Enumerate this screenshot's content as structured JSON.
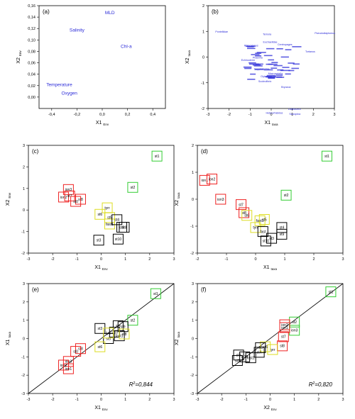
{
  "chart_data": [
    {
      "id": "a",
      "type": "scatter",
      "panel_label": "(a)",
      "xlabel": "X1",
      "xlabel_sub": "Env",
      "ylabel": "X2",
      "ylabel_sub": "Env",
      "xlim": [
        -0.5,
        0.5
      ],
      "ylim": [
        -0.02,
        0.16
      ],
      "xticks": [
        "-0,4",
        "-0,2",
        "0,0",
        "0,2",
        "0,4"
      ],
      "xtick_values": [
        -0.4,
        -0.2,
        0.0,
        0.2,
        0.4
      ],
      "yticks": [
        "0,00",
        "0,02",
        "0,04",
        "0,06",
        "0,08",
        "0,10",
        "0,12",
        "0,14",
        "0,16"
      ],
      "ytick_values": [
        0.0,
        0.02,
        0.04,
        0.06,
        0.08,
        0.1,
        0.12,
        0.14,
        0.16
      ],
      "text_color": "#2a2ad8",
      "points": [
        {
          "label": "MLD",
          "x": 0.06,
          "y": 0.145
        },
        {
          "label": "Salinity",
          "x": -0.2,
          "y": 0.115
        },
        {
          "label": "Chl-a",
          "x": 0.19,
          "y": 0.086
        },
        {
          "label": "Temperature",
          "x": -0.34,
          "y": 0.019
        },
        {
          "label": "Oxygen",
          "x": -0.26,
          "y": 0.004
        }
      ]
    },
    {
      "id": "b",
      "type": "scatter",
      "panel_label": "(b)",
      "xlabel": "X1",
      "xlabel_sub": "taxa",
      "ylabel": "X2",
      "ylabel_sub": "taxa",
      "xlim": [
        -3,
        3
      ],
      "ylim": [
        -2,
        2
      ],
      "xticks": [
        "-3",
        "-2",
        "-1",
        "0",
        "1",
        "2",
        "3"
      ],
      "xtick_values": [
        -3,
        -2,
        -1,
        0,
        1,
        2,
        3
      ],
      "yticks": [
        "-2",
        "-1",
        "0",
        "1",
        "2"
      ],
      "ytick_values": [
        -2,
        -1,
        0,
        1,
        2
      ],
      "text_color": "#2a2ad8",
      "points": [
        {
          "label": "Pontellidae",
          "x": -2.35,
          "y": 0.95
        },
        {
          "label": "Pseudodiaptomus",
          "x": 2.55,
          "y": 0.9
        },
        {
          "label": "Temora",
          "x": -0.2,
          "y": 0.85
        },
        {
          "label": "Euchaetidae",
          "x": -0.05,
          "y": 0.55
        },
        {
          "label": "Centropages",
          "x": 0.65,
          "y": 0.45
        },
        {
          "label": "Rhincalanus",
          "x": -0.95,
          "y": 0.42
        },
        {
          "label": "Tortanus",
          "x": 1.85,
          "y": 0.18
        },
        {
          "label": "Phaeniia",
          "x": -0.65,
          "y": -0.05
        },
        {
          "label": "Echinoderm",
          "x": -1.1,
          "y": -0.15
        },
        {
          "label": "Sapphirinidae",
          "x": -0.45,
          "y": -0.5
        },
        {
          "label": "Clytemnestra",
          "x": -0.15,
          "y": -0.78
        },
        {
          "label": "Scolecithrix",
          "x": -0.3,
          "y": -0.98
        },
        {
          "label": "Macrosetella",
          "x": 0.2,
          "y": -0.68
        },
        {
          "label": "Bryozoa",
          "x": 0.7,
          "y": -1.2
        },
        {
          "label": "Labidocera",
          "x": 1.1,
          "y": -2.05
        },
        {
          "label": "Heterorhabdus",
          "x": 0.15,
          "y": -2.2
        },
        {
          "label": "Scolopina",
          "x": 1.12,
          "y": -2.25
        }
      ],
      "cluster": {
        "x": [
          -1.2,
          1.2
        ],
        "y": [
          -0.9,
          0.5
        ]
      }
    },
    {
      "id": "c",
      "type": "scatter",
      "panel_label": "(c)",
      "xlabel": "X1",
      "xlabel_sub": "Env",
      "ylabel": "X2",
      "ylabel_sub": "Env",
      "xlim": [
        -3,
        3
      ],
      "ylim": [
        -2,
        3
      ],
      "xticks": [
        "-3",
        "-2",
        "-1",
        "0",
        "1",
        "2",
        "3"
      ],
      "xtick_values": [
        -3,
        -2,
        -1,
        0,
        1,
        2,
        3
      ],
      "yticks": [
        "-2",
        "-1",
        "0",
        "1",
        "2",
        "3"
      ],
      "ytick_values": [
        -2,
        -1,
        0,
        1,
        2,
        3
      ],
      "points": [
        {
          "label": "st1",
          "x": 2.3,
          "y": 2.5,
          "color": "#33cc33"
        },
        {
          "label": "st2",
          "x": 1.3,
          "y": 1.05,
          "color": "#33cc33"
        },
        {
          "label": "ion3",
          "x": -1.35,
          "y": 0.95,
          "color": "#ee2222"
        },
        {
          "label": "ion2",
          "x": -1.55,
          "y": 0.6,
          "color": "#ee2222"
        },
        {
          "label": "st7",
          "x": -1.3,
          "y": 0.65,
          "color": "#ee2222"
        },
        {
          "label": "st8",
          "x": -0.85,
          "y": 0.5,
          "color": "#ee2222"
        },
        {
          "label": "st0",
          "x": -1.05,
          "y": 0.4,
          "color": "#ee2222"
        },
        {
          "label": "tyrr",
          "x": 0.25,
          "y": 0.1,
          "color": "#dddd22"
        },
        {
          "label": "st6",
          "x": -0.05,
          "y": -0.2,
          "color": "#dddd22"
        },
        {
          "label": "st5",
          "x": 0.35,
          "y": -0.35,
          "color": "#dddd22"
        },
        {
          "label": "fast1",
          "x": 0.35,
          "y": -0.65,
          "color": "#dddd22"
        },
        {
          "label": "st4",
          "x": 0.65,
          "y": -0.45,
          "color": "#000000"
        },
        {
          "label": "st9",
          "x": 0.85,
          "y": -0.8,
          "color": "#000000"
        },
        {
          "label": "st3",
          "x": -0.1,
          "y": -1.4,
          "color": "#000000"
        },
        {
          "label": "st10",
          "x": 0.7,
          "y": -1.35,
          "color": "#000000"
        },
        {
          "label": "st8",
          "x": 0.95,
          "y": -0.8,
          "color": "#000000"
        }
      ]
    },
    {
      "id": "d",
      "type": "scatter",
      "panel_label": "(d)",
      "xlabel": "X1",
      "xlabel_sub": "taxa",
      "ylabel": "X2",
      "ylabel_sub": "taxa",
      "xlim": [
        -2,
        3
      ],
      "ylim": [
        -2,
        2
      ],
      "xticks": [
        "-2",
        "-1",
        "0",
        "1",
        "2",
        "3"
      ],
      "xtick_values": [
        -2,
        -1,
        0,
        1,
        2,
        3
      ],
      "yticks": [
        "-2",
        "-1",
        "0",
        "1",
        "2"
      ],
      "ytick_values": [
        -2,
        -1,
        0,
        1,
        2
      ],
      "points": [
        {
          "label": "st1",
          "x": 2.45,
          "y": 1.6,
          "color": "#33cc33"
        },
        {
          "label": "st2",
          "x": 1.05,
          "y": 0.15,
          "color": "#33cc33"
        },
        {
          "label": "ion1",
          "x": -1.75,
          "y": 0.7,
          "color": "#ee2222"
        },
        {
          "label": "ion2",
          "x": -1.5,
          "y": 0.75,
          "color": "#ee2222"
        },
        {
          "label": "ion3",
          "x": -1.2,
          "y": 0.0,
          "color": "#ee2222"
        },
        {
          "label": "st7",
          "x": -0.5,
          "y": -0.2,
          "color": "#ee2222"
        },
        {
          "label": "st8",
          "x": -0.4,
          "y": -0.5,
          "color": "#ee2222"
        },
        {
          "label": "st6",
          "x": -0.3,
          "y": -0.6,
          "color": "#dddd22"
        },
        {
          "label": "fast1",
          "x": 0.15,
          "y": -0.8,
          "color": "#dddd22"
        },
        {
          "label": "st5",
          "x": 0.3,
          "y": -0.75,
          "color": "#dddd22"
        },
        {
          "label": "tyrr",
          "x": 0.0,
          "y": -1.05,
          "color": "#dddd22"
        },
        {
          "label": "st4",
          "x": 0.9,
          "y": -1.05,
          "color": "#000000"
        },
        {
          "label": "st9",
          "x": 0.9,
          "y": -1.3,
          "color": "#000000"
        },
        {
          "label": "fast",
          "x": 0.25,
          "y": -1.2,
          "color": "#000000"
        },
        {
          "label": "st3",
          "x": 0.55,
          "y": -1.45,
          "color": "#000000"
        },
        {
          "label": "st10",
          "x": 0.35,
          "y": -1.55,
          "color": "#000000"
        }
      ]
    },
    {
      "id": "e",
      "type": "scatter",
      "panel_label": "(e)",
      "xlabel": "X1",
      "xlabel_sub": "Env",
      "ylabel": "X1",
      "ylabel_sub": "taxa",
      "xlim": [
        -3,
        3
      ],
      "ylim": [
        -3,
        3
      ],
      "xticks": [
        "-3",
        "-2",
        "-1",
        "0",
        "1",
        "2",
        "3"
      ],
      "xtick_values": [
        -3,
        -2,
        -1,
        0,
        1,
        2,
        3
      ],
      "yticks": [
        "-3",
        "-2",
        "-1",
        "0",
        "1",
        "2",
        "3"
      ],
      "ytick_values": [
        -3,
        -2,
        -1,
        0,
        1,
        2,
        3
      ],
      "annotation": "=0,844",
      "points": [
        {
          "label": "st1",
          "x": 2.25,
          "y": 2.45,
          "color": "#33cc33"
        },
        {
          "label": "st2",
          "x": 1.3,
          "y": 1.0,
          "color": "#33cc33"
        },
        {
          "label": "st3",
          "x": -0.05,
          "y": 0.55,
          "color": "#000000"
        },
        {
          "label": "st4",
          "x": 0.7,
          "y": 0.7,
          "color": "#000000"
        },
        {
          "label": "st9",
          "x": 0.9,
          "y": 0.65,
          "color": "#000000"
        },
        {
          "label": "st10",
          "x": 0.55,
          "y": 0.35,
          "color": "#000000"
        },
        {
          "label": "fast1",
          "x": 0.75,
          "y": 0.15,
          "color": "#000000"
        },
        {
          "label": "st5",
          "x": 0.3,
          "y": 0.0,
          "color": "#000000"
        },
        {
          "label": "st8",
          "x": 0.95,
          "y": 0.25,
          "color": "#dddd22"
        },
        {
          "label": "tyrr",
          "x": 0.3,
          "y": 0.3,
          "color": "#dddd22"
        },
        {
          "label": "st6",
          "x": -0.05,
          "y": -0.45,
          "color": "#dddd22"
        },
        {
          "label": "st8",
          "x": -0.85,
          "y": -0.55,
          "color": "#ee2222"
        },
        {
          "label": "st0",
          "x": -1.05,
          "y": -0.7,
          "color": "#ee2222"
        },
        {
          "label": "ion3",
          "x": -1.35,
          "y": -1.25,
          "color": "#ee2222"
        },
        {
          "label": "ion2",
          "x": -1.55,
          "y": -1.45,
          "color": "#ee2222"
        },
        {
          "label": "ion1",
          "x": -1.35,
          "y": -1.65,
          "color": "#ee2222"
        }
      ]
    },
    {
      "id": "f",
      "type": "scatter",
      "panel_label": "(f)",
      "xlabel": "X2",
      "xlabel_sub": "Env",
      "ylabel": "X2",
      "ylabel_sub": "taxa",
      "xlim": [
        -3,
        3
      ],
      "ylim": [
        -3,
        3
      ],
      "xticks": [
        "-3",
        "-2",
        "-1",
        "0",
        "1",
        "2",
        "3"
      ],
      "xtick_values": [
        -3,
        -2,
        -1,
        0,
        1,
        2,
        3
      ],
      "yticks": [
        "-3",
        "-2",
        "-1",
        "0",
        "1",
        "2",
        "3"
      ],
      "ytick_values": [
        -3,
        -2,
        -1,
        0,
        1,
        2,
        3
      ],
      "annotation": "=0,820",
      "points": [
        {
          "label": "st1",
          "x": 2.5,
          "y": 2.55,
          "color": "#33cc33"
        },
        {
          "label": "st2",
          "x": 1.0,
          "y": 0.9,
          "color": "#33cc33"
        },
        {
          "label": "ion3",
          "x": 1.0,
          "y": 0.45,
          "color": "#33cc33"
        },
        {
          "label": "ion2",
          "x": 0.6,
          "y": 0.75,
          "color": "#ee2222"
        },
        {
          "label": "ion1",
          "x": 0.6,
          "y": 0.6,
          "color": "#ee2222"
        },
        {
          "label": "st7",
          "x": 0.55,
          "y": 0.1,
          "color": "#ee2222"
        },
        {
          "label": "st8",
          "x": 0.5,
          "y": -0.4,
          "color": "#ee2222"
        },
        {
          "label": "tyrr",
          "x": 0.1,
          "y": -0.6,
          "color": "#dddd22"
        },
        {
          "label": "st6",
          "x": -0.2,
          "y": -0.45,
          "color": "#dddd22"
        },
        {
          "label": "st5",
          "x": -0.4,
          "y": -0.5,
          "color": "#000000"
        },
        {
          "label": "st4",
          "x": -0.45,
          "y": -0.75,
          "color": "#000000"
        },
        {
          "label": "st9",
          "x": -1.3,
          "y": -0.9,
          "color": "#000000"
        },
        {
          "label": "st10",
          "x": -1.05,
          "y": -1.0,
          "color": "#000000"
        },
        {
          "label": "st3",
          "x": -1.35,
          "y": -1.2,
          "color": "#000000"
        },
        {
          "label": "fast1",
          "x": -0.8,
          "y": -1.05,
          "color": "#000000"
        }
      ]
    }
  ]
}
